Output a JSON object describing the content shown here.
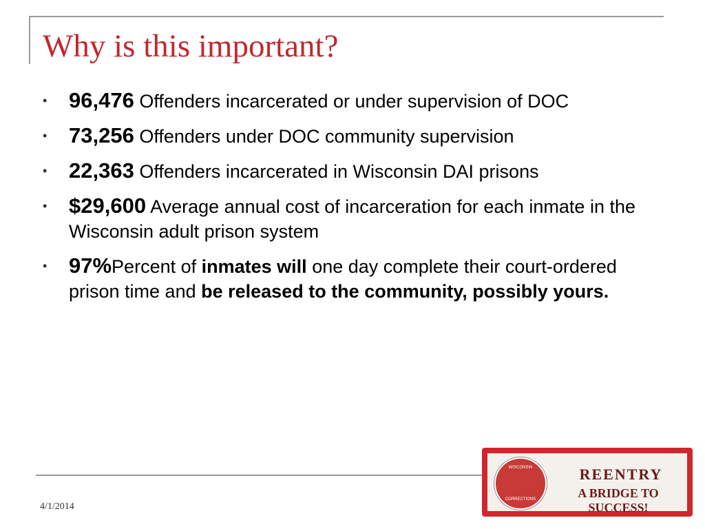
{
  "title": "Why is this important?",
  "bullets": [
    [
      {
        "text": "96,476",
        "style": "stat"
      },
      {
        "text": " Offenders incarcerated or under supervision of DOC",
        "style": "normal"
      }
    ],
    [
      {
        "text": "73,256",
        "style": "stat"
      },
      {
        "text": " Offenders under DOC community supervision",
        "style": "normal"
      }
    ],
    [
      {
        "text": "22,363",
        "style": "stat"
      },
      {
        "text": " Offenders incarcerated in Wisconsin DAI prisons",
        "style": "normal"
      }
    ],
    [
      {
        "text": "$29,600",
        "style": "stat"
      },
      {
        "text": " Average annual cost of incarceration for each inmate in the Wisconsin adult prison system",
        "style": "normal"
      }
    ],
    [
      {
        "text": "97%",
        "style": "stat"
      },
      {
        "text": "Percent of ",
        "style": "normal"
      },
      {
        "text": "inmates will",
        "style": "bold"
      },
      {
        "text": " one day complete their court-ordered prison time and ",
        "style": "normal"
      },
      {
        "text": "be released to the community, possibly yours.",
        "style": "bold"
      }
    ]
  ],
  "footer": {
    "date": "4/1/2014"
  },
  "logo": {
    "seal_top": "WISCONSIN",
    "seal_bottom": "CORRECTIONS",
    "name": "REENTRY",
    "tagline": "A BRIDGE TO SUCCESS!"
  }
}
